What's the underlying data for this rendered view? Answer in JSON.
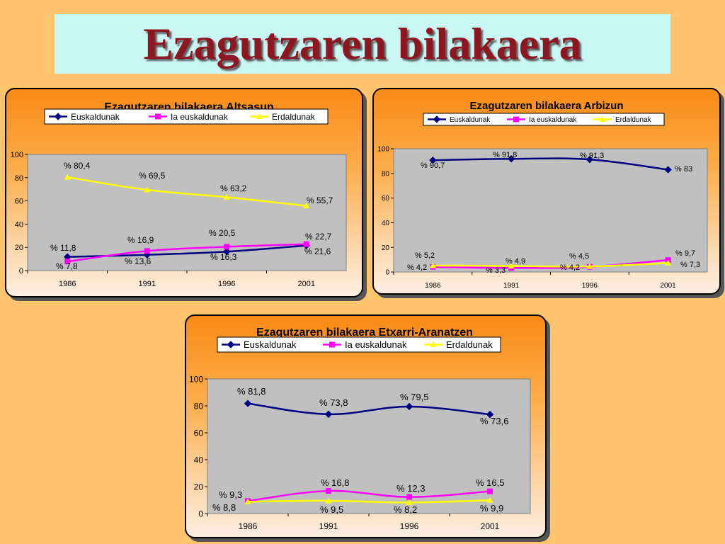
{
  "page": {
    "title": "Ezagutzaren bilakaera"
  },
  "legend_labels": [
    "Euskaldunak",
    "Ia euskaldunak",
    "Erdaldunak"
  ],
  "colors": {
    "euskaldunak": "#000080",
    "ia": "#ff00ff",
    "erdaldunak": "#ffff00",
    "plot_bg": "#c0c0c0"
  },
  "chart_data": [
    {
      "type": "line",
      "title": "Ezagutzaren bilakaera Altsasun",
      "categories": [
        "1986",
        "1991",
        "1996",
        "2001"
      ],
      "ylim": [
        0,
        100
      ],
      "yticks": [
        "0",
        "20",
        "40",
        "60",
        "80",
        "100"
      ],
      "legend": "top",
      "series": [
        {
          "name": "Euskaldunak",
          "values": [
            11.8,
            13.6,
            16.3,
            21.6
          ],
          "labels": [
            "% 11,8",
            "% 13,6",
            "% 16,3",
            "% 21,6"
          ]
        },
        {
          "name": "Ia euskaldunak",
          "values": [
            7.8,
            16.9,
            20.5,
            22.7
          ],
          "labels": [
            "% 7,8",
            "% 16,9",
            "% 20,5",
            "% 22,7"
          ]
        },
        {
          "name": "Erdaldunak",
          "values": [
            80.4,
            69.5,
            63.2,
            55.7
          ],
          "labels": [
            "% 80,4",
            "% 69,5",
            "% 63,2",
            "% 55,7"
          ]
        }
      ]
    },
    {
      "type": "line",
      "title": "Ezagutzaren bilakaera Arbizun",
      "categories": [
        "1986",
        "1991",
        "1996",
        "2001"
      ],
      "ylim": [
        0,
        100
      ],
      "yticks": [
        "0",
        "20",
        "40",
        "60",
        "80",
        "100"
      ],
      "legend": "top",
      "series": [
        {
          "name": "Euskaldunak",
          "values": [
            90.7,
            91.8,
            91.3,
            83
          ],
          "labels": [
            "% 90,7",
            "% 91,8",
            "% 91,3",
            "% 83"
          ]
        },
        {
          "name": "Ia euskaldunak",
          "values": [
            4.2,
            3.3,
            4.2,
            9.7
          ],
          "labels": [
            "% 4,2",
            "% 3,3",
            "% 4,2",
            "% 9,7"
          ]
        },
        {
          "name": "Erdaldunak",
          "values": [
            5.2,
            4.9,
            4.5,
            7.3
          ],
          "labels": [
            "% 5,2",
            "% 4,9",
            "% 4,5",
            "% 7,3"
          ]
        }
      ]
    },
    {
      "type": "line",
      "title": "Ezagutzaren bilakaera Etxarri-Aranatzen",
      "categories": [
        "1986",
        "1991",
        "1996",
        "2001"
      ],
      "ylim": [
        0,
        100
      ],
      "yticks": [
        "0",
        "20",
        "40",
        "60",
        "80",
        "100"
      ],
      "legend": "top",
      "series": [
        {
          "name": "Euskaldunak",
          "values": [
            81.8,
            73.8,
            79.5,
            73.6
          ],
          "labels": [
            "% 81,8",
            "% 73,8",
            "% 79,5",
            "% 73,6"
          ]
        },
        {
          "name": "Ia euskaldunak",
          "values": [
            9.3,
            16.8,
            12.3,
            16.5
          ],
          "labels": [
            "% 9,3",
            "% 16,8",
            "% 12,3",
            "% 16,5"
          ]
        },
        {
          "name": "Erdaldunak",
          "values": [
            8.8,
            9.5,
            8.2,
            9.9
          ],
          "labels": [
            "% 8,8",
            "% 9,5",
            "% 8,2",
            "% 9,9"
          ]
        }
      ]
    }
  ]
}
